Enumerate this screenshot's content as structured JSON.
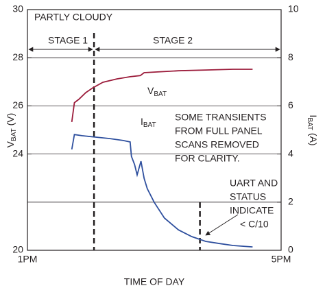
{
  "chart_data": {
    "type": "line",
    "x_label": "TIME OF DAY",
    "y_label": {
      "main": "V",
      "sub": "BAT",
      "unit": " (V)"
    },
    "y2_label": {
      "main": "I",
      "sub": "BAT",
      "unit": " (A)"
    },
    "xlim": [
      13,
      17
    ],
    "xticks": [
      {
        "value": 13,
        "label": "1PM"
      },
      {
        "value": 17,
        "label": "5PM"
      }
    ],
    "ylim": [
      20,
      30
    ],
    "yticks": [
      30,
      28,
      26,
      24,
      20
    ],
    "y2lim": [
      0,
      10
    ],
    "y2ticks": [
      10,
      8,
      6,
      4,
      2,
      0
    ],
    "grid": true,
    "series": [
      {
        "name": {
          "main": "V",
          "sub": "BAT"
        },
        "color": "#9b1b3a",
        "x": [
          13.7,
          13.74,
          13.81,
          13.92,
          14.03,
          14.19,
          14.41,
          14.62,
          14.78,
          14.84,
          15.05,
          15.38,
          15.81,
          16.24,
          16.55
        ],
        "values": [
          25.33,
          26.13,
          26.27,
          26.55,
          26.75,
          26.98,
          27.12,
          27.21,
          27.26,
          27.38,
          27.41,
          27.46,
          27.49,
          27.52,
          27.52
        ]
      },
      {
        "name": {
          "main": "I",
          "sub": "BAT"
        },
        "color": "#2e4f9e",
        "axis": "y2",
        "x": [
          13.7,
          13.74,
          13.86,
          14.08,
          14.3,
          14.51,
          14.62,
          14.64,
          14.69,
          14.73,
          14.76,
          14.79,
          14.84,
          14.89,
          15.0,
          15.16,
          15.38,
          15.59,
          15.81,
          16.03,
          16.24,
          16.55
        ],
        "values": [
          4.19,
          4.81,
          4.76,
          4.7,
          4.64,
          4.56,
          4.5,
          3.9,
          3.56,
          3.13,
          3.42,
          3.7,
          2.99,
          2.56,
          1.99,
          1.34,
          0.85,
          0.57,
          0.37,
          0.28,
          0.2,
          0.14
        ]
      }
    ],
    "vlines": [
      14.05,
      15.72
    ],
    "annotations": {
      "condition": "PARTLY CLOUDY",
      "stage1": "STAGE 1",
      "stage2": "STAGE 2",
      "note": [
        "SOME TRANSIENTS",
        "FROM FULL PANEL",
        "SCANS REMOVED",
        "FOR CLARITY."
      ],
      "status": [
        "UART AND",
        "STATUS",
        "INDICATE",
        "< C/10"
      ]
    }
  }
}
